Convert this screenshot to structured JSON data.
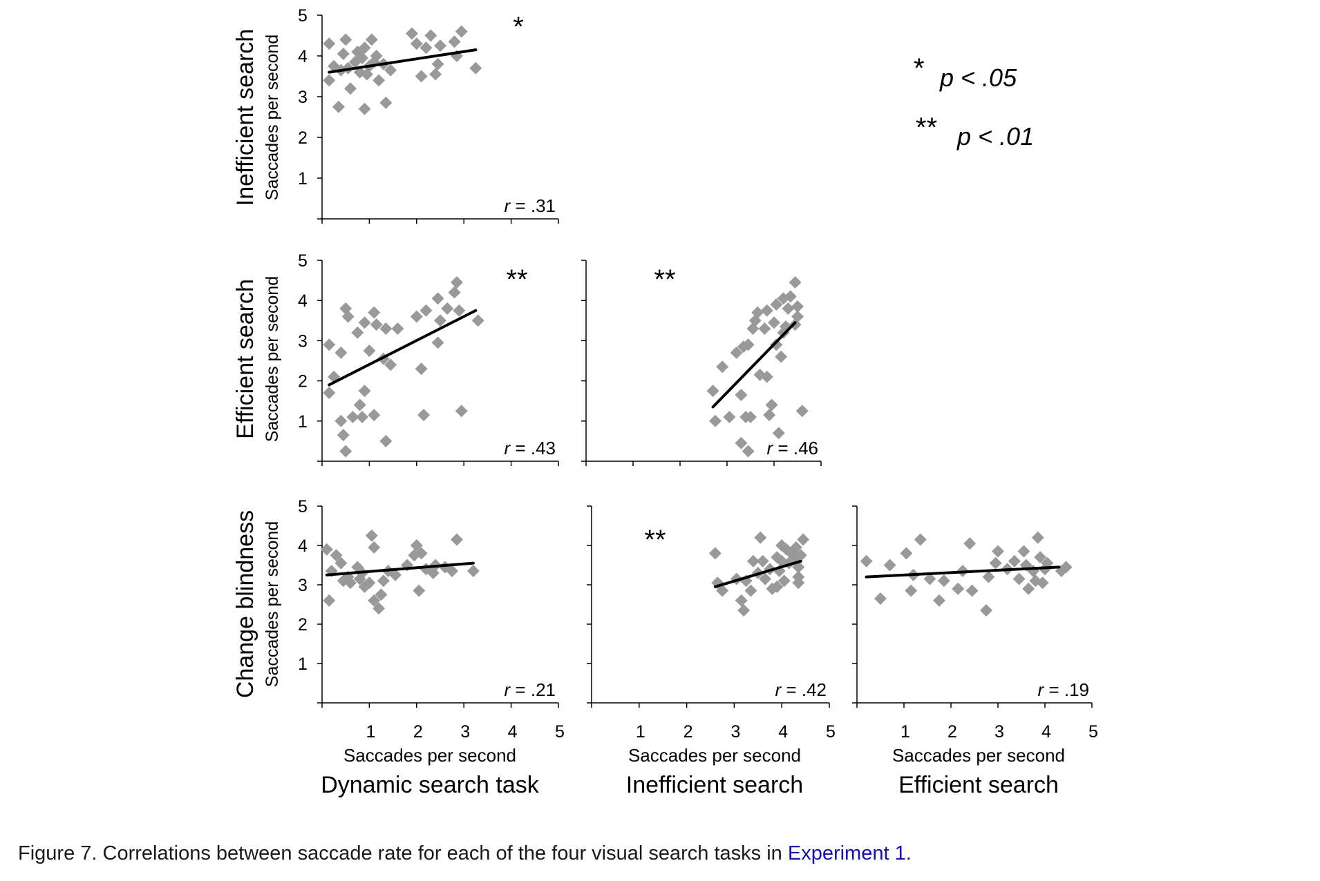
{
  "figure": {
    "legend": [
      {
        "stars": "*",
        "text": "p < .05"
      },
      {
        "stars": "**",
        "text": "p < .01"
      }
    ],
    "column_titles": [
      "Dynamic search task",
      "Inefficient search",
      "Efficient search"
    ],
    "row_titles": [
      "Inefficient search",
      "Efficient search",
      "Change blindness"
    ],
    "axis_label": "Saccades per second",
    "point_color": "#999999",
    "line_color": "#000000"
  },
  "caption": {
    "text": "Figure 7. Correlations between saccade rate for each of the four visual search tasks in ",
    "link": "Experiment 1",
    "end": "."
  },
  "chart_data": [
    {
      "type": "scatter",
      "id": "p1",
      "xlabel": "Dynamic search task",
      "ylabel": "Inefficient search",
      "xlim": [
        0,
        5
      ],
      "ylim": [
        0,
        5
      ],
      "yticks": [
        1,
        2,
        3,
        4,
        5
      ],
      "r": ".31",
      "sig": "*",
      "fit": [
        [
          0.15,
          3.6
        ],
        [
          3.25,
          4.15
        ]
      ],
      "points": [
        [
          0.15,
          4.3
        ],
        [
          0.15,
          3.4
        ],
        [
          0.25,
          3.75
        ],
        [
          0.35,
          2.75
        ],
        [
          0.4,
          3.65
        ],
        [
          0.45,
          4.05
        ],
        [
          0.5,
          4.4
        ],
        [
          0.55,
          3.7
        ],
        [
          0.6,
          3.2
        ],
        [
          0.7,
          3.85
        ],
        [
          0.75,
          4.1
        ],
        [
          0.8,
          3.6
        ],
        [
          0.85,
          3.95
        ],
        [
          0.9,
          4.2
        ],
        [
          0.9,
          2.7
        ],
        [
          0.95,
          3.55
        ],
        [
          1.0,
          3.75
        ],
        [
          1.05,
          4.4
        ],
        [
          1.1,
          3.85
        ],
        [
          1.15,
          4.0
        ],
        [
          1.2,
          3.4
        ],
        [
          1.3,
          3.8
        ],
        [
          1.35,
          2.85
        ],
        [
          1.45,
          3.65
        ],
        [
          1.9,
          4.55
        ],
        [
          2.0,
          4.3
        ],
        [
          2.1,
          3.5
        ],
        [
          2.2,
          4.2
        ],
        [
          2.3,
          4.5
        ],
        [
          2.4,
          3.55
        ],
        [
          2.45,
          3.8
        ],
        [
          2.5,
          4.25
        ],
        [
          2.8,
          4.35
        ],
        [
          2.85,
          4.0
        ],
        [
          2.95,
          4.6
        ],
        [
          3.25,
          3.7
        ]
      ]
    },
    {
      "type": "scatter",
      "id": "p2",
      "xlabel": "Dynamic search task",
      "ylabel": "Efficient search",
      "xlim": [
        0,
        5
      ],
      "ylim": [
        0,
        5
      ],
      "yticks": [
        1,
        2,
        3,
        4,
        5
      ],
      "r": ".43",
      "sig": "**",
      "fit": [
        [
          0.15,
          1.9
        ],
        [
          3.25,
          3.75
        ]
      ],
      "points": [
        [
          0.15,
          2.9
        ],
        [
          0.15,
          1.7
        ],
        [
          0.25,
          2.1
        ],
        [
          0.4,
          2.7
        ],
        [
          0.4,
          1.0
        ],
        [
          0.45,
          0.65
        ],
        [
          0.5,
          0.25
        ],
        [
          0.5,
          3.8
        ],
        [
          0.55,
          3.6
        ],
        [
          0.65,
          1.1
        ],
        [
          0.75,
          3.2
        ],
        [
          0.8,
          1.4
        ],
        [
          0.85,
          1.1
        ],
        [
          0.9,
          1.75
        ],
        [
          0.9,
          3.45
        ],
        [
          1.0,
          2.75
        ],
        [
          1.1,
          1.15
        ],
        [
          1.1,
          3.7
        ],
        [
          1.15,
          3.4
        ],
        [
          1.3,
          2.55
        ],
        [
          1.35,
          0.5
        ],
        [
          1.35,
          3.3
        ],
        [
          1.45,
          2.4
        ],
        [
          1.6,
          3.3
        ],
        [
          2.0,
          3.6
        ],
        [
          2.1,
          2.3
        ],
        [
          2.15,
          1.15
        ],
        [
          2.2,
          3.75
        ],
        [
          2.45,
          4.05
        ],
        [
          2.5,
          3.5
        ],
        [
          2.45,
          2.95
        ],
        [
          2.65,
          3.8
        ],
        [
          2.8,
          4.2
        ],
        [
          2.85,
          4.45
        ],
        [
          2.9,
          3.75
        ],
        [
          2.95,
          1.25
        ],
        [
          3.3,
          3.5
        ]
      ]
    },
    {
      "type": "scatter",
      "id": "p3",
      "xlabel": "Inefficient search",
      "ylabel": "Efficient search",
      "xlim": [
        0,
        5
      ],
      "ylim": [
        0,
        5
      ],
      "yticks": [],
      "r": ".46",
      "sig": "**",
      "fit": [
        [
          2.7,
          1.35
        ],
        [
          4.45,
          3.45
        ]
      ],
      "points": [
        [
          2.7,
          1.75
        ],
        [
          2.75,
          1.0
        ],
        [
          2.9,
          2.35
        ],
        [
          3.05,
          1.1
        ],
        [
          3.2,
          2.7
        ],
        [
          3.3,
          1.65
        ],
        [
          3.3,
          0.45
        ],
        [
          3.35,
          2.85
        ],
        [
          3.4,
          1.1
        ],
        [
          3.45,
          0.25
        ],
        [
          3.45,
          2.9
        ],
        [
          3.5,
          1.1
        ],
        [
          3.55,
          3.3
        ],
        [
          3.6,
          3.5
        ],
        [
          3.65,
          3.7
        ],
        [
          3.7,
          2.15
        ],
        [
          3.8,
          3.3
        ],
        [
          3.85,
          2.1
        ],
        [
          3.85,
          3.75
        ],
        [
          3.9,
          1.15
        ],
        [
          3.95,
          1.4
        ],
        [
          4.0,
          3.45
        ],
        [
          4.05,
          3.9
        ],
        [
          4.05,
          2.9
        ],
        [
          4.1,
          0.7
        ],
        [
          4.15,
          2.6
        ],
        [
          4.2,
          4.05
        ],
        [
          4.2,
          3.2
        ],
        [
          4.25,
          3.35
        ],
        [
          4.3,
          3.8
        ],
        [
          4.35,
          4.1
        ],
        [
          4.45,
          4.45
        ],
        [
          4.5,
          3.85
        ],
        [
          4.5,
          3.6
        ],
        [
          4.6,
          1.25
        ],
        [
          4.45,
          3.4
        ]
      ]
    },
    {
      "type": "scatter",
      "id": "p4",
      "xlabel": "Dynamic search task",
      "ylabel": "Change blindness",
      "xlim": [
        0,
        5
      ],
      "ylim": [
        0,
        5
      ],
      "yticks": [
        1,
        2,
        3,
        4,
        5
      ],
      "xticks": [
        1,
        2,
        3,
        4,
        5
      ],
      "r": ".21",
      "sig": "",
      "fit": [
        [
          0.1,
          3.25
        ],
        [
          3.2,
          3.55
        ]
      ],
      "points": [
        [
          0.1,
          3.9
        ],
        [
          0.15,
          2.6
        ],
        [
          0.2,
          3.35
        ],
        [
          0.3,
          3.75
        ],
        [
          0.4,
          3.55
        ],
        [
          0.45,
          3.1
        ],
        [
          0.55,
          3.2
        ],
        [
          0.6,
          3.05
        ],
        [
          0.75,
          3.45
        ],
        [
          0.8,
          3.15
        ],
        [
          0.85,
          3.3
        ],
        [
          0.9,
          2.95
        ],
        [
          1.0,
          3.05
        ],
        [
          1.05,
          4.25
        ],
        [
          1.1,
          3.95
        ],
        [
          1.1,
          2.6
        ],
        [
          1.2,
          2.4
        ],
        [
          1.25,
          2.75
        ],
        [
          1.3,
          3.1
        ],
        [
          1.4,
          3.35
        ],
        [
          1.55,
          3.25
        ],
        [
          1.8,
          3.5
        ],
        [
          1.95,
          3.75
        ],
        [
          2.0,
          4.0
        ],
        [
          2.05,
          2.85
        ],
        [
          2.1,
          3.8
        ],
        [
          2.2,
          3.4
        ],
        [
          2.35,
          3.3
        ],
        [
          2.4,
          3.5
        ],
        [
          2.6,
          3.45
        ],
        [
          2.75,
          3.35
        ],
        [
          2.85,
          4.15
        ],
        [
          3.2,
          3.35
        ]
      ]
    },
    {
      "type": "scatter",
      "id": "p5",
      "xlabel": "Inefficient search",
      "ylabel": "Change blindness",
      "xlim": [
        0,
        5
      ],
      "ylim": [
        0,
        5
      ],
      "yticks": [],
      "xticks": [
        1,
        2,
        3,
        4,
        5
      ],
      "r": ".42",
      "sig": "**",
      "fit": [
        [
          2.6,
          2.95
        ],
        [
          4.4,
          3.6
        ]
      ],
      "points": [
        [
          2.6,
          3.8
        ],
        [
          2.65,
          3.05
        ],
        [
          2.75,
          2.85
        ],
        [
          3.05,
          3.15
        ],
        [
          3.15,
          2.6
        ],
        [
          3.2,
          2.35
        ],
        [
          3.25,
          3.1
        ],
        [
          3.35,
          2.85
        ],
        [
          3.4,
          3.6
        ],
        [
          3.5,
          3.3
        ],
        [
          3.55,
          4.2
        ],
        [
          3.6,
          3.6
        ],
        [
          3.65,
          3.15
        ],
        [
          3.75,
          3.4
        ],
        [
          3.8,
          2.9
        ],
        [
          3.9,
          3.7
        ],
        [
          3.9,
          2.95
        ],
        [
          3.95,
          3.35
        ],
        [
          4.0,
          3.6
        ],
        [
          4.0,
          4.0
        ],
        [
          4.05,
          3.1
        ],
        [
          4.1,
          3.9
        ],
        [
          4.15,
          3.55
        ],
        [
          4.2,
          3.8
        ],
        [
          4.25,
          3.65
        ],
        [
          4.3,
          3.95
        ],
        [
          4.35,
          3.45
        ],
        [
          4.35,
          3.2
        ],
        [
          4.35,
          3.05
        ],
        [
          4.4,
          3.75
        ],
        [
          4.45,
          4.15
        ]
      ]
    },
    {
      "type": "scatter",
      "id": "p6",
      "xlabel": "Efficient search",
      "ylabel": "Change blindness",
      "xlim": [
        0,
        5
      ],
      "ylim": [
        0,
        5
      ],
      "yticks": [],
      "xticks": [
        1,
        2,
        3,
        4,
        5
      ],
      "r": ".19",
      "sig": "",
      "fit": [
        [
          0.2,
          3.2
        ],
        [
          4.3,
          3.45
        ]
      ],
      "points": [
        [
          0.2,
          3.6
        ],
        [
          0.5,
          2.65
        ],
        [
          0.7,
          3.5
        ],
        [
          1.05,
          3.8
        ],
        [
          1.15,
          2.85
        ],
        [
          1.2,
          3.25
        ],
        [
          1.35,
          4.15
        ],
        [
          1.55,
          3.15
        ],
        [
          1.75,
          2.6
        ],
        [
          1.85,
          3.1
        ],
        [
          2.15,
          2.9
        ],
        [
          2.25,
          3.35
        ],
        [
          2.4,
          4.05
        ],
        [
          2.45,
          2.85
        ],
        [
          2.75,
          2.35
        ],
        [
          2.8,
          3.2
        ],
        [
          2.95,
          3.55
        ],
        [
          3.0,
          3.85
        ],
        [
          3.2,
          3.4
        ],
        [
          3.35,
          3.6
        ],
        [
          3.45,
          3.15
        ],
        [
          3.55,
          3.85
        ],
        [
          3.6,
          3.5
        ],
        [
          3.65,
          2.9
        ],
        [
          3.75,
          3.35
        ],
        [
          3.8,
          3.1
        ],
        [
          3.85,
          4.2
        ],
        [
          3.9,
          3.7
        ],
        [
          3.95,
          3.05
        ],
        [
          4.0,
          3.4
        ],
        [
          4.05,
          3.55
        ],
        [
          4.35,
          3.35
        ],
        [
          4.45,
          3.45
        ]
      ]
    }
  ]
}
